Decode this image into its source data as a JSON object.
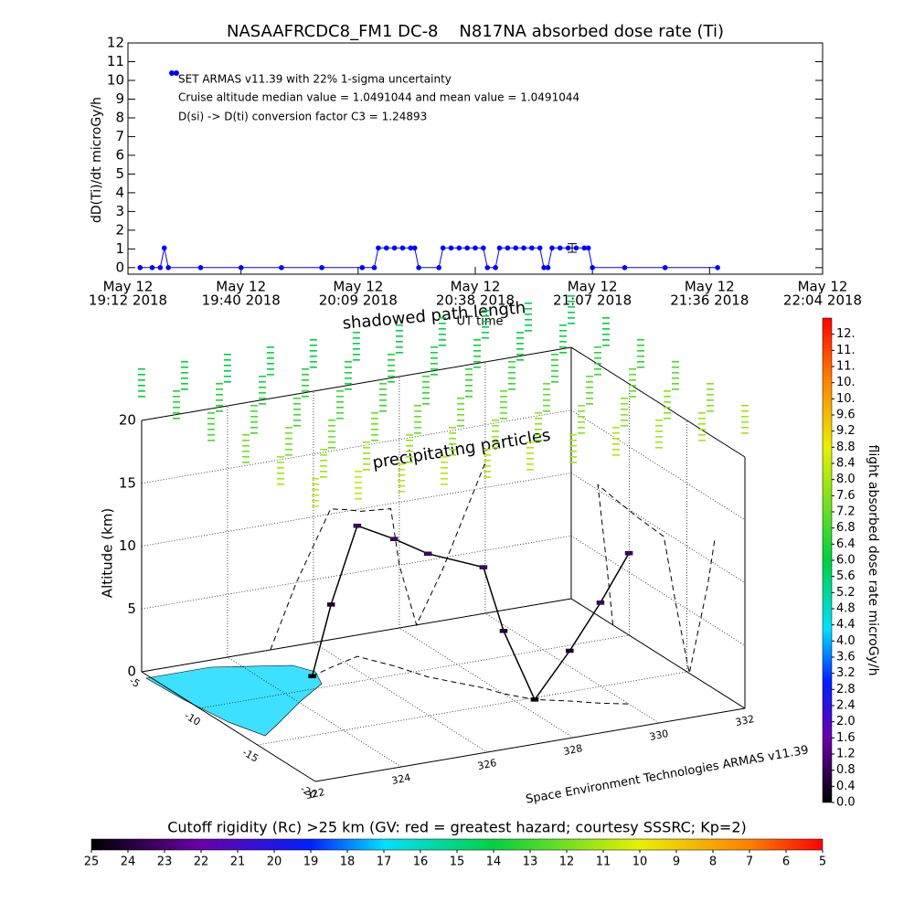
{
  "chart_data": [
    {
      "type": "line",
      "title": "NASAAFRCDC8_FM1 DC-8    N817NA absorbed dose rate (Ti)",
      "y_label": "dD(Ti)/dt microGy/h",
      "x_label": "UT time",
      "x": [
        "2018-05-12 19:15",
        "2018-05-12 19:18",
        "2018-05-12 19:20",
        "2018-05-12 19:21",
        "2018-05-12 19:22",
        "2018-05-12 19:30",
        "2018-05-12 19:40",
        "2018-05-12 19:50",
        "2018-05-12 20:00",
        "2018-05-12 20:10",
        "2018-05-12 20:13",
        "2018-05-12 20:14",
        "2018-05-12 20:16",
        "2018-05-12 20:18",
        "2018-05-12 20:20",
        "2018-05-12 20:22",
        "2018-05-12 20:23",
        "2018-05-12 20:24",
        "2018-05-12 20:29",
        "2018-05-12 20:30",
        "2018-05-12 20:32",
        "2018-05-12 20:34",
        "2018-05-12 20:36",
        "2018-05-12 20:38",
        "2018-05-12 20:40",
        "2018-05-12 20:41",
        "2018-05-12 20:43",
        "2018-05-12 20:44",
        "2018-05-12 20:46",
        "2018-05-12 20:48",
        "2018-05-12 20:50",
        "2018-05-12 20:52",
        "2018-05-12 20:54",
        "2018-05-12 20:55",
        "2018-05-12 20:56",
        "2018-05-12 20:57",
        "2018-05-12 20:59",
        "2018-05-12 21:01",
        "2018-05-12 21:03",
        "2018-05-12 21:05",
        "2018-05-12 21:06",
        "2018-05-12 21:07",
        "2018-05-12 21:15",
        "2018-05-12 21:25",
        "2018-05-12 21:38"
      ],
      "series": [
        {
          "name": "SET ARMAS v11.39 with 22% 1-sigma uncertainty",
          "color": "#0000ff",
          "values": [
            0,
            0,
            0,
            1.05,
            0,
            0,
            0,
            0,
            0,
            0,
            0,
            1.05,
            1.05,
            1.05,
            1.05,
            1.05,
            1.05,
            0,
            0,
            1.05,
            1.05,
            1.05,
            1.05,
            1.05,
            1.05,
            0,
            0,
            1.05,
            1.05,
            1.05,
            1.05,
            1.05,
            1.05,
            0,
            0,
            1.05,
            1.05,
            1.05,
            1.05,
            1.05,
            1.05,
            0,
            0,
            0,
            0
          ]
        }
      ],
      "error_bar": {
        "x": "2018-05-12 21:02",
        "value": 1.05,
        "error": 0.23
      },
      "annotations": [
        "Cruise altitude median value = 1.0491044 and mean value = 1.0491044",
        "D(si) -> D(ti) conversion factor C3 = 1.24893"
      ],
      "xlim": [
        "2018-05-12 19:12",
        "2018-05-12 22:04"
      ],
      "xticks": [
        {
          "value": "2018-05-12 19:12",
          "label": [
            "May 12",
            "19:12 2018"
          ]
        },
        {
          "value": "2018-05-12 19:40",
          "label": [
            "May 12",
            "19:40 2018"
          ]
        },
        {
          "value": "2018-05-12 20:09",
          "label": [
            "May 12",
            "20:09 2018"
          ]
        },
        {
          "value": "2018-05-12 20:38",
          "label": [
            "May 12",
            "20:38 2018"
          ]
        },
        {
          "value": "2018-05-12 21:07",
          "label": [
            "May 12",
            "21:07 2018"
          ]
        },
        {
          "value": "2018-05-12 21:36",
          "label": [
            "May 12",
            "21:36 2018"
          ]
        },
        {
          "value": "2018-05-12 22:04",
          "label": [
            "May 12",
            "22:04 2018"
          ]
        }
      ],
      "ylim": [
        -0.35,
        12
      ],
      "yticks": [
        0,
        1,
        2,
        3,
        4,
        5,
        6,
        7,
        8,
        9,
        10,
        11,
        12
      ]
    },
    {
      "type": "scatter3d",
      "z_label": "Altitude (km)",
      "annotations": [
        "shadowed path length",
        "precipitating particles",
        "Space Environment Technologies ARMAS v11.39"
      ],
      "xlim": [
        322,
        332
      ],
      "xticks": [
        322,
        324,
        326,
        328,
        330,
        332
      ],
      "ylim": [
        -20,
        -5
      ],
      "yticks": [
        -5,
        -10,
        -15,
        -20
      ],
      "zlim": [
        0,
        20
      ],
      "zticks": [
        0,
        5,
        10,
        15,
        20
      ],
      "track": {
        "lon": [
          325.0,
          325.6,
          326.4,
          326.8,
          327.1,
          327.8,
          328.0,
          328.4,
          329.0,
          329.5,
          330.0
        ],
        "lat": [
          -8.6,
          -8.0,
          -7.3,
          -9.0,
          -10.8,
          -13.0,
          -14.0,
          -15.2,
          -16.0,
          -16.8,
          -17.4
        ],
        "alt": [
          0,
          5,
          10.4,
          10.1,
          9.8,
          9.6,
          5,
          0,
          4,
          8,
          12
        ],
        "dose": [
          0,
          0.5,
          1.05,
          1.05,
          1.05,
          1.05,
          0.5,
          0,
          0.5,
          1.0,
          1.05
        ]
      },
      "rigidity": {
        "lon": [
          322,
          323,
          324,
          325,
          326,
          327,
          328,
          329,
          330,
          331,
          332
        ],
        "lat": [
          -20,
          -17,
          -14,
          -11,
          -8,
          -5
        ],
        "alt": 23,
        "values": [
          [
            10.8,
            10.8,
            10.9,
            10.9,
            11.0,
            11.0,
            11.1,
            11.1,
            11.2,
            11.2,
            11.3
          ],
          [
            11.3,
            11.3,
            11.4,
            11.4,
            11.5,
            11.5,
            11.6,
            11.6,
            11.7,
            11.7,
            11.8
          ],
          [
            12.0,
            12.0,
            12.1,
            12.1,
            12.2,
            12.2,
            12.3,
            12.3,
            12.4,
            12.4,
            12.5
          ],
          [
            12.8,
            12.8,
            12.9,
            12.9,
            13.0,
            13.0,
            13.1,
            13.1,
            13.2,
            13.2,
            13.3
          ],
          [
            13.4,
            13.4,
            13.5,
            13.5,
            13.6,
            13.6,
            13.7,
            13.7,
            13.8,
            13.8,
            13.9
          ],
          [
            13.9,
            13.9,
            14.0,
            14.0,
            14.1,
            14.1,
            14.2,
            14.2,
            14.3,
            14.3,
            14.4
          ]
        ]
      }
    },
    {
      "type": "colorbar",
      "label": "flight absorbed dose rate microGy/h",
      "orientation": "vertical",
      "lim": [
        0,
        12
      ],
      "ticks": [
        {
          "value": 0,
          "label": "0.0"
        },
        0.4,
        0.8,
        1.2,
        1.6,
        {
          "value": 2,
          "label": "2.0"
        },
        2.4,
        2.8,
        3.2,
        3.6,
        {
          "value": 4,
          "label": "4.0"
        },
        4.4,
        4.8,
        5.2,
        5.6,
        {
          "value": 6,
          "label": "6.0"
        },
        6.4,
        6.8,
        7.2,
        7.6,
        {
          "value": 8,
          "label": "8.0"
        },
        8.4,
        8.8,
        9.2,
        9.6,
        {
          "value": 10,
          "label": "10."
        },
        {
          "value": 10.4,
          "label": "10."
        },
        {
          "value": 10.8,
          "label": "11."
        },
        {
          "value": 11.2,
          "label": "11."
        },
        {
          "value": 11.6,
          "label": "12."
        }
      ],
      "colors": [
        {
          "value": 0,
          "color": "#000000"
        },
        {
          "value": 1.6,
          "color": "#6a00a8"
        },
        {
          "value": 3,
          "color": "#0020ff"
        },
        {
          "value": 4.3,
          "color": "#00e0ff"
        },
        {
          "value": 6,
          "color": "#00d040"
        },
        {
          "value": 8.8,
          "color": "#e8f000"
        },
        {
          "value": 10.5,
          "color": "#ff8000"
        },
        {
          "value": 12,
          "color": "#ff0000"
        }
      ]
    },
    {
      "type": "colorbar",
      "title": "Cutoff rigidity (Rc) >25 km (GV: red = greatest hazard; courtesy SSSRC; Kp=2)",
      "orientation": "horizontal",
      "lim": [
        25,
        5
      ],
      "ticks": [
        25,
        24,
        23,
        22,
        21,
        20,
        19,
        18,
        17,
        16,
        15,
        14,
        13,
        12,
        11,
        10,
        9,
        8,
        7,
        6,
        5
      ],
      "colors": [
        {
          "value": 5,
          "color": "#ff0000"
        },
        {
          "value": 7,
          "color": "#ff8000"
        },
        {
          "value": 10,
          "color": "#e8f000"
        },
        {
          "value": 14,
          "color": "#00d040"
        },
        {
          "value": 17,
          "color": "#00e0ff"
        },
        {
          "value": 19,
          "color": "#0020ff"
        },
        {
          "value": 22,
          "color": "#6a00a8"
        },
        {
          "value": 25,
          "color": "#000000"
        }
      ]
    }
  ]
}
